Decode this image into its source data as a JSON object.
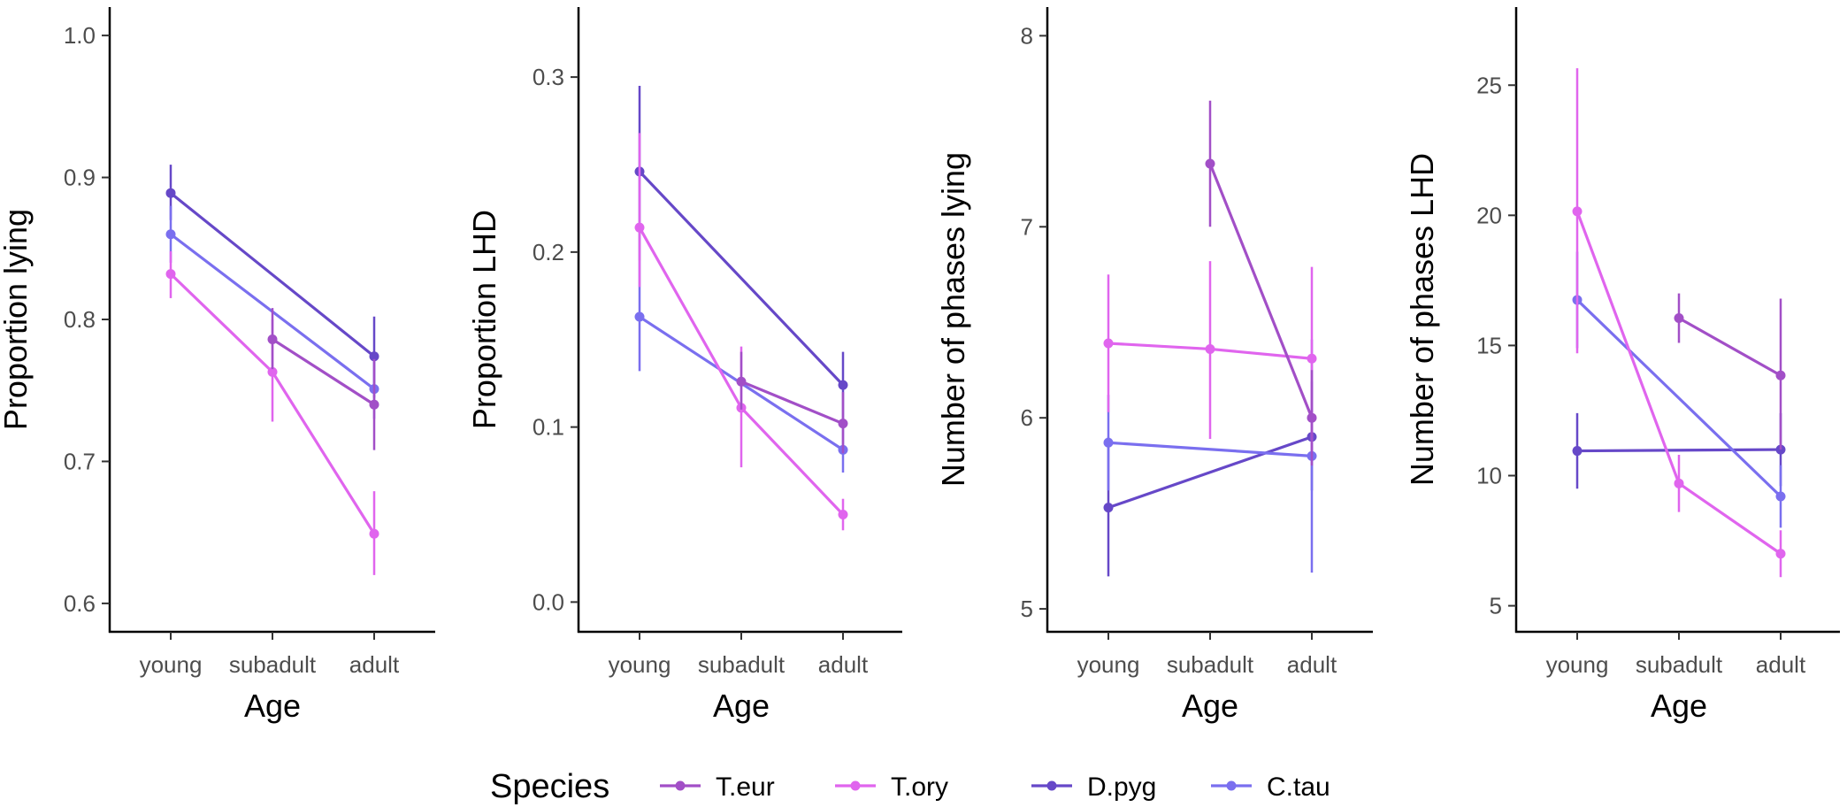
{
  "chart_data": [
    {
      "type": "line",
      "title": "",
      "xlabel": "Age",
      "ylabel": "Proportion lying",
      "categories": [
        "young",
        "subadult",
        "adult"
      ],
      "ylim": [
        0.58,
        1.02
      ],
      "yticks": [
        0.6,
        0.7,
        0.8,
        0.9,
        1.0
      ],
      "ytick_labels": [
        "0.6",
        "0.7",
        "0.8",
        "0.9",
        "1.0"
      ],
      "grid": false,
      "series": [
        {
          "name": "T.eur",
          "values": [
            null,
            0.786,
            0.74
          ],
          "lower": [
            null,
            0.765,
            0.708
          ],
          "upper": [
            null,
            0.808,
            0.772
          ]
        },
        {
          "name": "T.ory",
          "values": [
            0.832,
            0.763,
            0.649
          ],
          "lower": [
            0.815,
            0.728,
            0.62
          ],
          "upper": [
            0.848,
            0.8,
            0.679
          ]
        },
        {
          "name": "D.pyg",
          "values": [
            0.889,
            null,
            0.774
          ],
          "lower": [
            0.87,
            null,
            0.745
          ],
          "upper": [
            0.909,
            null,
            0.802
          ]
        },
        {
          "name": "C.tau",
          "values": [
            0.86,
            null,
            0.751
          ],
          "lower": [
            0.84,
            null,
            0.73
          ],
          "upper": [
            0.88,
            null,
            0.772
          ]
        }
      ]
    },
    {
      "type": "line",
      "title": "",
      "xlabel": "Age",
      "ylabel": "Proportion LHD",
      "categories": [
        "young",
        "subadult",
        "adult"
      ],
      "ylim": [
        -0.017,
        0.34
      ],
      "yticks": [
        0.0,
        0.1,
        0.2,
        0.3
      ],
      "ytick_labels": [
        "0.0",
        "0.1",
        "0.2",
        "0.3"
      ],
      "grid": false,
      "series": [
        {
          "name": "T.eur",
          "values": [
            null,
            0.126,
            0.102
          ],
          "lower": [
            null,
            0.11,
            0.085
          ],
          "upper": [
            null,
            0.143,
            0.12
          ]
        },
        {
          "name": "T.ory",
          "values": [
            0.214,
            0.111,
            0.05
          ],
          "lower": [
            0.18,
            0.077,
            0.041
          ],
          "upper": [
            0.268,
            0.146,
            0.059
          ]
        },
        {
          "name": "D.pyg",
          "values": [
            0.246,
            null,
            0.124
          ],
          "lower": [
            0.195,
            null,
            0.104
          ],
          "upper": [
            0.295,
            null,
            0.143
          ]
        },
        {
          "name": "C.tau",
          "values": [
            0.163,
            null,
            0.087
          ],
          "lower": [
            0.132,
            null,
            0.074
          ],
          "upper": [
            0.195,
            null,
            0.1
          ]
        }
      ]
    },
    {
      "type": "line",
      "title": "",
      "xlabel": "Age",
      "ylabel": "Number of phases lying",
      "categories": [
        "young",
        "subadult",
        "adult"
      ],
      "ylim": [
        4.88,
        8.15
      ],
      "yticks": [
        5,
        6,
        7,
        8
      ],
      "ytick_labels": [
        "5",
        "6",
        "7",
        "8"
      ],
      "grid": false,
      "series": [
        {
          "name": "T.eur",
          "values": [
            null,
            7.33,
            6.0
          ],
          "lower": [
            null,
            7.0,
            5.75
          ],
          "upper": [
            null,
            7.66,
            6.25
          ]
        },
        {
          "name": "T.ory",
          "values": [
            6.39,
            6.36,
            6.31
          ],
          "lower": [
            6.03,
            5.89,
            5.83
          ],
          "upper": [
            6.75,
            6.82,
            6.79
          ]
        },
        {
          "name": "D.pyg",
          "values": [
            5.53,
            null,
            5.9
          ],
          "lower": [
            5.17,
            null,
            5.62
          ],
          "upper": [
            5.9,
            null,
            6.19
          ]
        },
        {
          "name": "C.tau",
          "values": [
            5.87,
            null,
            5.8
          ],
          "lower": [
            5.62,
            null,
            5.19
          ],
          "upper": [
            6.12,
            null,
            6.41
          ]
        }
      ]
    },
    {
      "type": "line",
      "title": "",
      "xlabel": "Age",
      "ylabel": "Number of phases LHD",
      "categories": [
        "young",
        "subadult",
        "adult"
      ],
      "ylim": [
        4.0,
        28.0
      ],
      "yticks": [
        5,
        10,
        15,
        20,
        25
      ],
      "ytick_labels": [
        "5",
        "10",
        "15",
        "20",
        "25"
      ],
      "grid": false,
      "series": [
        {
          "name": "T.eur",
          "values": [
            null,
            16.05,
            13.85
          ],
          "lower": [
            null,
            15.1,
            11.0
          ],
          "upper": [
            null,
            17.0,
            16.8
          ]
        },
        {
          "name": "T.ory",
          "values": [
            20.15,
            9.7,
            7.0
          ],
          "lower": [
            14.7,
            8.6,
            6.1
          ],
          "upper": [
            25.65,
            10.8,
            7.9
          ]
        },
        {
          "name": "D.pyg",
          "values": [
            10.95,
            null,
            11.0
          ],
          "lower": [
            9.5,
            null,
            9.6
          ],
          "upper": [
            12.4,
            null,
            12.4
          ]
        },
        {
          "name": "C.tau",
          "values": [
            16.75,
            null,
            9.2
          ],
          "lower": [
            14.9,
            null,
            8.0
          ],
          "upper": [
            18.6,
            null,
            10.4
          ]
        }
      ]
    }
  ],
  "legend": {
    "title": "Species",
    "entries": [
      {
        "name": "T.eur",
        "color": "#a24fc7"
      },
      {
        "name": "T.ory",
        "color": "#e065ee"
      },
      {
        "name": "D.pyg",
        "color": "#6648c8"
      },
      {
        "name": "C.tau",
        "color": "#7a6fef"
      }
    ]
  }
}
